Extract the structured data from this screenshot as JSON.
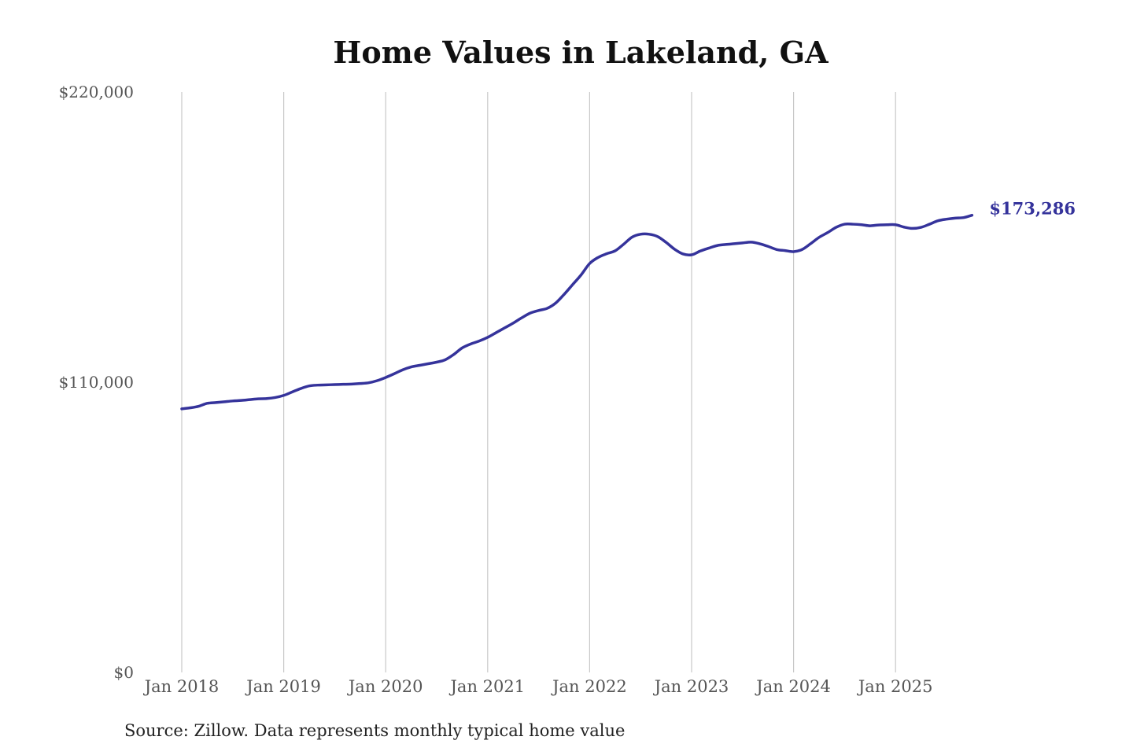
{
  "chart_data": {
    "type": "line",
    "title": "Home Values in Lakeland, GA",
    "xlabel": "",
    "ylabel": "",
    "source": "Source: Zillow. Data represents monthly typical home value",
    "ylim": [
      0,
      220000
    ],
    "yticks": [
      0,
      110000,
      220000
    ],
    "ytick_labels": [
      "$0",
      "$110,000",
      "$220,000"
    ],
    "xticks": [
      "2018-01",
      "2019-01",
      "2020-01",
      "2021-01",
      "2022-01",
      "2023-01",
      "2024-01",
      "2025-01"
    ],
    "xtick_labels": [
      "Jan 2018",
      "Jan 2019",
      "Jan 2020",
      "Jan 2021",
      "Jan 2022",
      "Jan 2023",
      "Jan 2024",
      "Jan 2025"
    ],
    "x_start": "2018-01",
    "x_end": "2025-10",
    "grid": "vertical",
    "line_color": "#35339b",
    "end_label": "$173,286",
    "series": [
      {
        "frequency": "monthly",
        "values": [
          99900,
          100300,
          100900,
          102000,
          102300,
          102600,
          102900,
          103100,
          103400,
          103700,
          103800,
          104200,
          105000,
          106300,
          107600,
          108600,
          108900,
          109000,
          109100,
          109200,
          109300,
          109500,
          109800,
          110600,
          111800,
          113200,
          114700,
          115800,
          116400,
          117000,
          117600,
          118500,
          120500,
          123000,
          124500,
          125600,
          127000,
          128800,
          130600,
          132400,
          134400,
          136200,
          137200,
          138000,
          140000,
          143300,
          147000,
          150700,
          155000,
          157300,
          158700,
          159800,
          162300,
          165000,
          166100,
          166100,
          165200,
          163000,
          160400,
          158600,
          158300,
          159700,
          160800,
          161800,
          162200,
          162500,
          162800,
          163100,
          162500,
          161500,
          160300,
          159900,
          159500,
          160300,
          162500,
          164900,
          166700,
          168700,
          169900,
          169900,
          169700,
          169300,
          169600,
          169700,
          169700,
          168800,
          168300,
          168700,
          169900,
          171200,
          171800,
          172200,
          172400,
          173286
        ]
      }
    ]
  }
}
